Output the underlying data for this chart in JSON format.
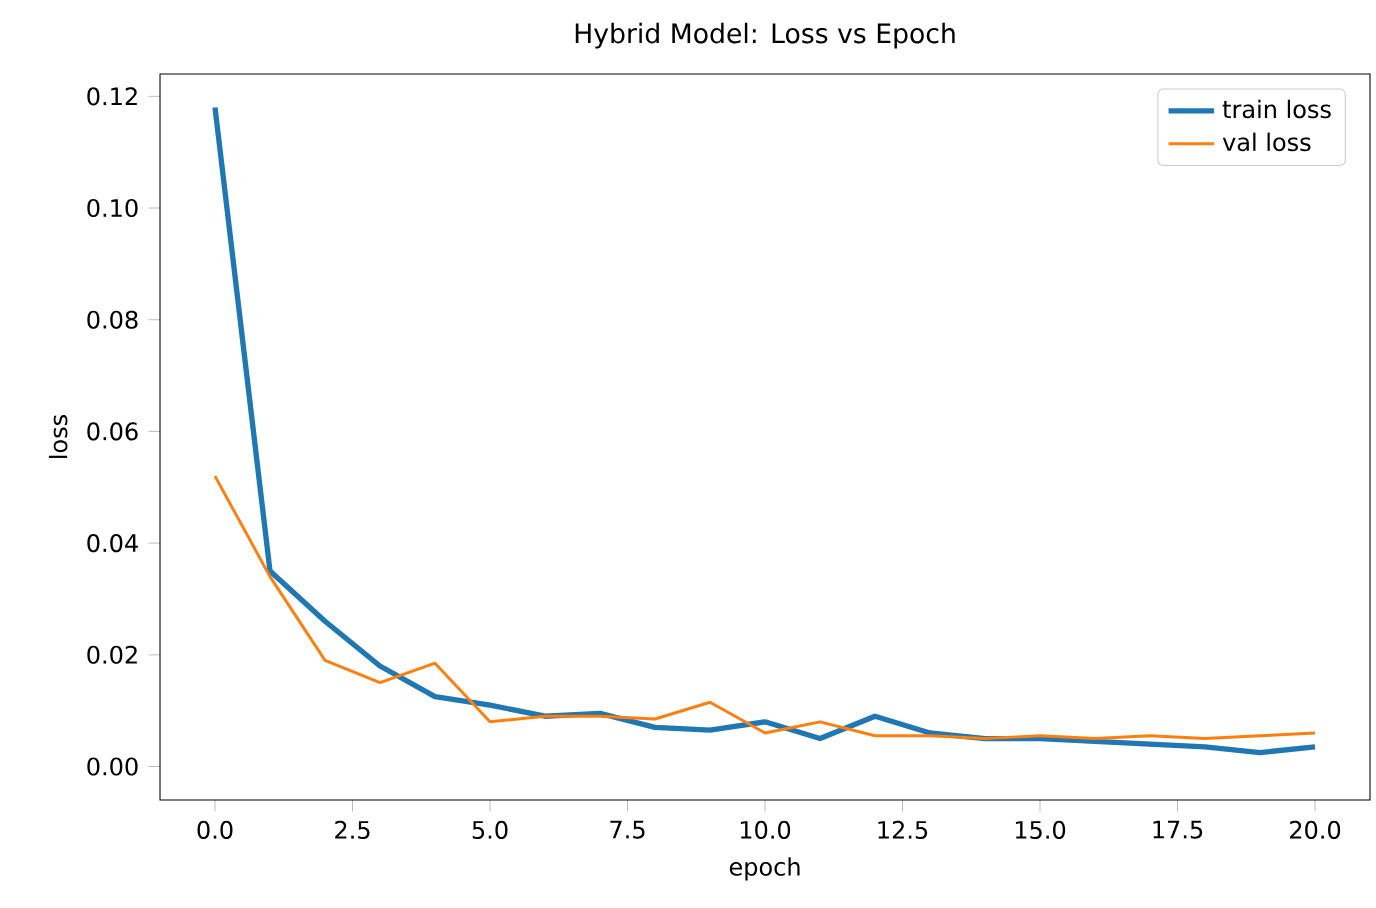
{
  "chart_data": {
    "type": "line",
    "title": "Hybrid Model: Loss vs Epoch",
    "xlabel": "epoch",
    "ylabel": "loss",
    "x": [
      0,
      1,
      2,
      3,
      4,
      5,
      6,
      7,
      8,
      9,
      10,
      11,
      12,
      13,
      14,
      15,
      16,
      17,
      18,
      19,
      20
    ],
    "series": [
      {
        "name": "train loss",
        "color": "#1f77b4",
        "values": [
          0.118,
          0.035,
          0.026,
          0.018,
          0.0125,
          0.011,
          0.009,
          0.0095,
          0.007,
          0.0065,
          0.008,
          0.005,
          0.009,
          0.006,
          0.005,
          0.005,
          0.0045,
          0.004,
          0.0035,
          0.0025,
          0.0035
        ]
      },
      {
        "name": "val loss",
        "color": "#ff7f0e",
        "values": [
          0.052,
          0.034,
          0.019,
          0.015,
          0.0185,
          0.008,
          0.009,
          0.009,
          0.0085,
          0.0115,
          0.006,
          0.008,
          0.0055,
          0.0055,
          0.005,
          0.0055,
          0.005,
          0.0055,
          0.005,
          0.0055,
          0.006
        ]
      }
    ],
    "xlim": [
      -1,
      21
    ],
    "ylim": [
      -0.006,
      0.124
    ],
    "xticks": [
      {
        "value": 0,
        "label": "0.0"
      },
      {
        "value": 2.5,
        "label": "2.5"
      },
      {
        "value": 5,
        "label": "5.0"
      },
      {
        "value": 7.5,
        "label": "7.5"
      },
      {
        "value": 10,
        "label": "10.0"
      },
      {
        "value": 12.5,
        "label": "12.5"
      },
      {
        "value": 15,
        "label": "15.0"
      },
      {
        "value": 17.5,
        "label": "17.5"
      },
      {
        "value": 20,
        "label": "20.0"
      }
    ],
    "yticks": [
      {
        "value": 0,
        "label": "0.00"
      },
      {
        "value": 0.02,
        "label": "0.02"
      },
      {
        "value": 0.04,
        "label": "0.04"
      },
      {
        "value": 0.06,
        "label": "0.06"
      },
      {
        "value": 0.08,
        "label": "0.08"
      },
      {
        "value": 0.1,
        "label": "0.10"
      },
      {
        "value": 0.12,
        "label": "0.12"
      }
    ],
    "legend": "top right",
    "grid": false
  }
}
